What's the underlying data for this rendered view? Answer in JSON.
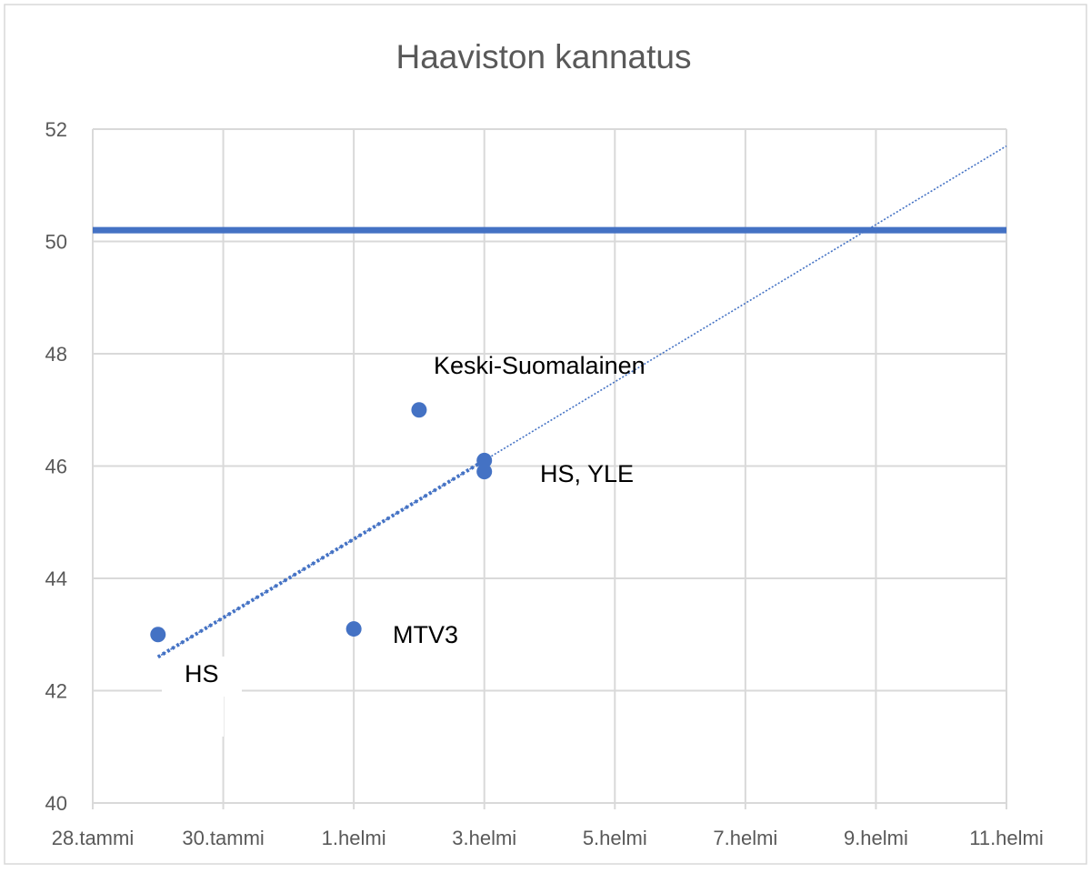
{
  "chart_data": {
    "type": "scatter",
    "title": "Haaviston kannatus",
    "xlabel": "",
    "ylabel": "",
    "x_ticks": [
      "28.tammi",
      "30.tammi",
      "1.helmi",
      "3.helmi",
      "5.helmi",
      "7.helmi",
      "9.helmi",
      "11.helmi"
    ],
    "y_ticks": [
      "52",
      "50",
      "48",
      "46",
      "44",
      "42",
      "40"
    ],
    "xlim": [
      "28.tammi",
      "11.helmi"
    ],
    "ylim": [
      40,
      52
    ],
    "grid": true,
    "legend": "none",
    "points": [
      {
        "x": "29.tammi",
        "y": 43.0
      },
      {
        "x": "1.helmi",
        "y": 43.1
      },
      {
        "x": "2.helmi",
        "y": 47.0
      },
      {
        "x": "3.helmi",
        "y": 46.1
      },
      {
        "x": "3.helmi",
        "y": 45.9
      }
    ],
    "annotations": [
      "HS",
      "MTV3",
      "Keski-Suomalainen",
      "HS, YLE"
    ],
    "reference_line": {
      "y": 50.2,
      "color": "#4472C4"
    },
    "trendline": {
      "type": "linear",
      "from": {
        "x": "29.tammi",
        "y": 42.6
      },
      "to": {
        "x": "11.helmi",
        "y": 51.7
      },
      "style": "dotted"
    },
    "colors": {
      "points": "#4472C4",
      "grid": "#D9D9D9",
      "text": "#595959"
    }
  }
}
